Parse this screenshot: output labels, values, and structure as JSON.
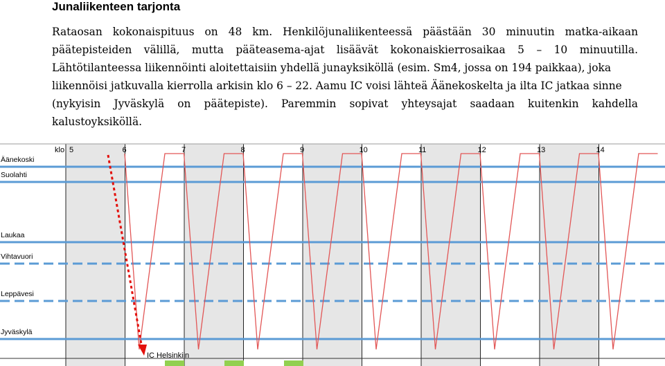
{
  "heading": "Junaliikenteen tarjonta",
  "paragraph_lines": [
    "Rataosan  kokonaispituus  on  48  km.   Henkilöjunaliikenteessä  päästään  30  minuutin  matka-aikaan",
    "päätepisteiden  välillä,  mutta  pääteasema-ajat  lisäävät  kokonaiskierrosaikaa  5  –  10  minuutilla.",
    "Lähtötilanteessa liikennöinti aloitettaisiin yhdellä junayksiköllä (esim. Sm4, jossa on 194 paikkaa), joka",
    "liikennöisi jatkuvalla kierrolla arkisin klo 6 – 22. Aamu IC voisi lähteä Äänekoskelta ja ilta IC jatkaa sinne",
    "(nykyisin  Jyväskylä  on  päätepiste).   Paremmin  sopivat  yhteysajat  saadaan  kuitenkin  kahdella",
    "kalustoyksiköllä."
  ],
  "diagram": {
    "klo_label": "klo",
    "hour_labels": [
      "5",
      "6",
      "7",
      "8",
      "9",
      "10",
      "11",
      "12",
      "13",
      "14"
    ],
    "stations": [
      {
        "name": "Äänekoski",
        "line": "solid"
      },
      {
        "name": "Suolahti",
        "line": "solid"
      },
      {
        "name": "Laukaa",
        "line": "solid"
      },
      {
        "name": "Vihtavuori",
        "line": "dashed"
      },
      {
        "name": "Leppävesi",
        "line": "dashed"
      },
      {
        "name": "Jyväskylä",
        "line": "solid"
      }
    ],
    "ic_label": "IC Helsinkiin",
    "colors": {
      "station_line": "#5b9bd5",
      "train_line": "#e25656",
      "ic_arrow": "#e3110d",
      "shade": "#e6e6e6",
      "green_mark": "#92d050"
    }
  }
}
